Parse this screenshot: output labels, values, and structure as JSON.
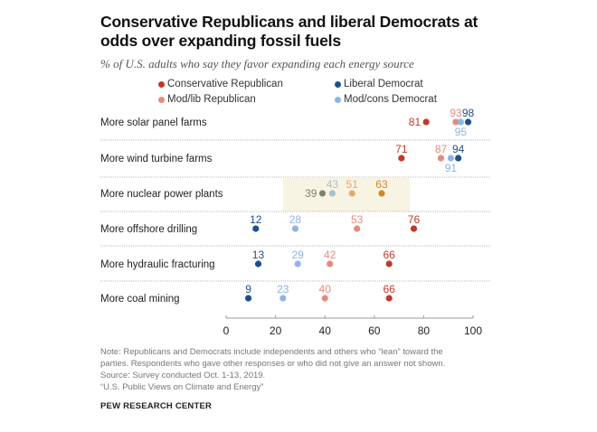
{
  "chart_data": {
    "type": "scatter",
    "title": "Conservative Republicans and liberal Democrats at odds over expanding fossil fuels",
    "subtitle": "% of U.S. adults who say they favor expanding each energy source",
    "xlabel": "",
    "ylabel": "",
    "xlim": [
      0,
      100
    ],
    "x_ticks": [
      "0",
      "20",
      "40",
      "60",
      "80",
      "100"
    ],
    "x_tick_values": [
      0,
      20,
      40,
      60,
      80,
      100
    ],
    "grid": false,
    "legend_position": "top",
    "categories": [
      "More solar panel farms",
      "More wind turbine farms",
      "More nuclear power plants",
      "More offshore drilling",
      "More hydraulic fracturing",
      "More coal mining"
    ],
    "series": [
      {
        "name": "Conservative Republican",
        "color": "#c0392b",
        "values": [
          81,
          71,
          63,
          76,
          66,
          66
        ]
      },
      {
        "name": "Mod/lib Republican",
        "color": "#e58a7c",
        "values": [
          93,
          87,
          51,
          53,
          42,
          40
        ]
      },
      {
        "name": "Liberal Democrat",
        "color": "#1f4e8c",
        "values": [
          98,
          94,
          39,
          12,
          13,
          9
        ]
      },
      {
        "name": "Mod/cons Democrat",
        "color": "#8fb3e3",
        "values": [
          95,
          91,
          43,
          28,
          29,
          23
        ]
      }
    ],
    "highlight": {
      "category": "More nuclear power plants",
      "background": "#f8f4e3",
      "colors": {
        "Conservative Republican": "#d4862a",
        "Mod/lib Republican": "#e8a76c",
        "Liberal Democrat": "#7f8270",
        "Mod/cons Democrat": "#a9bfd4"
      }
    },
    "label_positions": {
      "More solar panel farms": {
        "Conservative Republican": "left",
        "Mod/lib Republican": "above",
        "Liberal Democrat": "above",
        "Mod/cons Democrat": "below"
      },
      "More wind turbine farms": {
        "Conservative Republican": "above",
        "Mod/lib Republican": "above",
        "Liberal Democrat": "above",
        "Mod/cons Democrat": "below"
      },
      "More nuclear power plants": {
        "Conservative Republican": "above",
        "Mod/lib Republican": "above",
        "Liberal Democrat": "left",
        "Mod/cons Democrat": "above"
      },
      "More offshore drilling": {
        "Conservative Republican": "above",
        "Mod/lib Republican": "above",
        "Liberal Democrat": "above",
        "Mod/cons Democrat": "above"
      },
      "More hydraulic fracturing": {
        "Conservative Republican": "above",
        "Mod/lib Republican": "above",
        "Liberal Democrat": "above",
        "Mod/cons Democrat": "above"
      },
      "More coal mining": {
        "Conservative Republican": "above",
        "Mod/lib Republican": "above",
        "Liberal Democrat": "above",
        "Mod/cons Democrat": "above"
      }
    }
  },
  "legend": [
    {
      "label": "Conservative Republican",
      "color": "#c0392b"
    },
    {
      "label": "Liberal Democrat",
      "color": "#1f4e8c"
    },
    {
      "label": "Mod/lib Republican",
      "color": "#e58a7c"
    },
    {
      "label": "Mod/cons Democrat",
      "color": "#8fb3e3"
    }
  ],
  "footer": {
    "note_lines": [
      "Note: Republicans and Democrats include independents and others who “lean” toward the",
      "parties. Respondents who gave other responses or who did not give an answer not shown.",
      "Source: Survey conducted Oct. 1-13, 2019.",
      "“U.S. Public Views on Climate and Energy”"
    ],
    "org": "PEW RESEARCH CENTER"
  }
}
